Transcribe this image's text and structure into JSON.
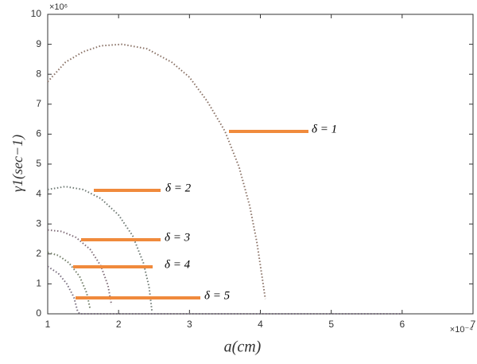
{
  "chart_data": {
    "type": "line",
    "xlabel": "a(cm)",
    "ylabel": "γ1(sec−1)",
    "x_scale_label": "×10⁻⁴",
    "y_scale_label": "×10⁶",
    "xlim": [
      1,
      7
    ],
    "ylim": [
      0,
      10
    ],
    "xticks": [
      1,
      2,
      3,
      4,
      5,
      6,
      7
    ],
    "yticks": [
      0,
      1,
      2,
      3,
      4,
      5,
      6,
      7,
      8,
      9,
      10
    ],
    "grid": false,
    "marker_color": "#f08a3c",
    "series": [
      {
        "name": "δ = 1",
        "color": "#8a7266",
        "x": [
          1,
          1.25,
          1.5,
          1.75,
          2.05,
          2.4,
          2.75,
          3.0,
          3.25,
          3.5,
          3.7,
          3.85,
          3.95,
          4.02,
          4.07
        ],
        "values": [
          7.75,
          8.4,
          8.75,
          8.95,
          9.0,
          8.85,
          8.4,
          7.9,
          7.1,
          6.1,
          4.9,
          3.6,
          2.4,
          1.3,
          0.5
        ]
      },
      {
        "name": "δ = 2",
        "color": "#6f7a74",
        "x": [
          1,
          1.25,
          1.5,
          1.75,
          2.0,
          2.2,
          2.35,
          2.43,
          2.47
        ],
        "values": [
          4.15,
          4.25,
          4.15,
          3.85,
          3.3,
          2.6,
          1.7,
          0.9,
          0.1
        ]
      },
      {
        "name": "δ = 3",
        "color": "#7f6c78",
        "x": [
          1,
          1.2,
          1.4,
          1.6,
          1.75,
          1.85,
          1.9
        ],
        "values": [
          2.8,
          2.75,
          2.55,
          2.15,
          1.6,
          0.95,
          0.3
        ]
      },
      {
        "name": "δ = 4",
        "color": "#707c66",
        "x": [
          1,
          1.15,
          1.3,
          1.45,
          1.55,
          1.6
        ],
        "values": [
          2.05,
          1.95,
          1.7,
          1.25,
          0.7,
          0.15
        ]
      },
      {
        "name": "δ = 5",
        "color": "#7a6f80",
        "x": [
          1,
          1.15,
          1.27,
          1.37,
          1.42,
          1.45,
          6
        ],
        "values": [
          1.58,
          1.35,
          1.0,
          0.55,
          0.1,
          0,
          0
        ]
      }
    ]
  }
}
